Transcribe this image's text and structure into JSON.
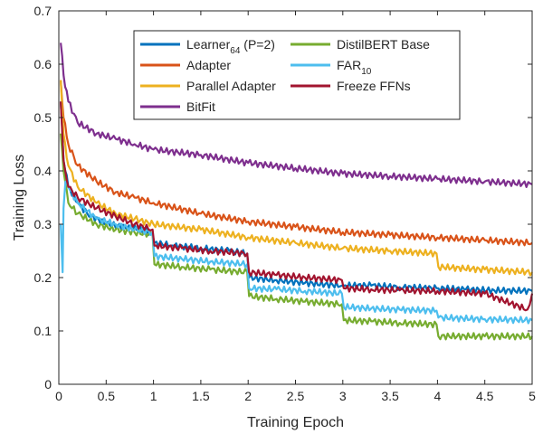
{
  "chart_data": {
    "type": "line",
    "title": "",
    "xlabel": "Training Epoch",
    "ylabel": "Training Loss",
    "xlim": [
      0,
      5
    ],
    "ylim": [
      0,
      0.7
    ],
    "xticks": [
      0,
      0.5,
      1,
      1.5,
      2,
      2.5,
      3,
      3.5,
      4,
      4.5,
      5
    ],
    "xtick_labels": [
      "0",
      "0.5",
      "1",
      "1.5",
      "2",
      "2.5",
      "3",
      "3.5",
      "4",
      "4.5",
      "5"
    ],
    "yticks": [
      0,
      0.1,
      0.2,
      0.3,
      0.4,
      0.5,
      0.6,
      0.7
    ],
    "ytick_labels": [
      "0",
      "0.1",
      "0.2",
      "0.3",
      "0.4",
      "0.5",
      "0.6",
      "0.7"
    ],
    "grid": false,
    "legend_position": "top-center",
    "series": [
      {
        "name": "Learner64 (P=2)",
        "legend_base": "Learner",
        "legend_sub": "64",
        "legend_suffix": " (P=2)",
        "color": "#0072BD",
        "x": [
          0.02,
          0.05,
          0.1,
          0.2,
          0.3,
          0.5,
          0.7,
          0.9,
          0.99,
          1.01,
          1.2,
          1.5,
          1.8,
          1.99,
          2.01,
          2.3,
          2.6,
          2.99,
          3.01,
          3.3,
          3.6,
          3.99,
          4.01,
          4.3,
          4.6,
          5.0
        ],
        "y": [
          0.53,
          0.42,
          0.37,
          0.34,
          0.32,
          0.3,
          0.295,
          0.29,
          0.28,
          0.265,
          0.26,
          0.255,
          0.25,
          0.245,
          0.2,
          0.195,
          0.19,
          0.185,
          0.185,
          0.185,
          0.182,
          0.18,
          0.18,
          0.178,
          0.176,
          0.175
        ]
      },
      {
        "name": "Adapter",
        "color": "#D95319",
        "x": [
          0.02,
          0.05,
          0.1,
          0.2,
          0.4,
          0.6,
          0.8,
          1.0,
          1.5,
          2.0,
          2.5,
          3.0,
          3.5,
          4.0,
          4.5,
          5.0
        ],
        "y": [
          0.57,
          0.5,
          0.45,
          0.41,
          0.38,
          0.36,
          0.35,
          0.34,
          0.32,
          0.305,
          0.295,
          0.285,
          0.28,
          0.275,
          0.27,
          0.265
        ]
      },
      {
        "name": "Parallel Adapter",
        "color": "#EDB120",
        "x": [
          0.02,
          0.05,
          0.1,
          0.2,
          0.4,
          0.6,
          0.8,
          1.0,
          1.5,
          2.0,
          2.5,
          3.0,
          3.5,
          3.99,
          4.01,
          4.5,
          5.0
        ],
        "y": [
          0.57,
          0.47,
          0.41,
          0.37,
          0.34,
          0.32,
          0.31,
          0.3,
          0.29,
          0.275,
          0.265,
          0.255,
          0.25,
          0.245,
          0.22,
          0.215,
          0.21
        ]
      },
      {
        "name": "BitFit",
        "color": "#7E2F8E",
        "x": [
          0.02,
          0.05,
          0.1,
          0.2,
          0.4,
          0.6,
          0.8,
          1.0,
          1.5,
          2.0,
          2.5,
          3.0,
          3.5,
          4.0,
          4.5,
          5.0
        ],
        "y": [
          0.64,
          0.58,
          0.53,
          0.49,
          0.47,
          0.46,
          0.45,
          0.44,
          0.43,
          0.415,
          0.405,
          0.395,
          0.39,
          0.385,
          0.38,
          0.375
        ]
      },
      {
        "name": "DistilBERT Base",
        "color": "#77AC30",
        "x": [
          0.02,
          0.05,
          0.1,
          0.2,
          0.4,
          0.6,
          0.8,
          0.99,
          1.01,
          1.3,
          1.6,
          1.99,
          2.01,
          2.3,
          2.6,
          2.99,
          3.01,
          3.3,
          3.6,
          3.99,
          4.01,
          4.5,
          5.0
        ],
        "y": [
          0.47,
          0.4,
          0.34,
          0.32,
          0.3,
          0.29,
          0.285,
          0.28,
          0.225,
          0.22,
          0.215,
          0.21,
          0.165,
          0.16,
          0.155,
          0.15,
          0.12,
          0.118,
          0.115,
          0.112,
          0.09,
          0.09,
          0.09
        ]
      },
      {
        "name": "FAR10",
        "legend_base": "FAR",
        "legend_sub": "10",
        "legend_suffix": "",
        "color": "#4DBEEE",
        "x": [
          0.02,
          0.04,
          0.05,
          0.07,
          0.1,
          0.2,
          0.4,
          0.6,
          0.8,
          0.99,
          1.01,
          1.3,
          1.6,
          1.99,
          2.01,
          2.3,
          2.6,
          2.99,
          3.01,
          3.3,
          3.6,
          3.99,
          4.01,
          4.5,
          5.0
        ],
        "y": [
          0.3,
          0.21,
          0.33,
          0.38,
          0.37,
          0.34,
          0.31,
          0.3,
          0.29,
          0.285,
          0.24,
          0.235,
          0.23,
          0.225,
          0.18,
          0.178,
          0.175,
          0.17,
          0.145,
          0.142,
          0.14,
          0.138,
          0.125,
          0.122,
          0.12
        ]
      },
      {
        "name": "Freeze FFNs",
        "color": "#A2142F",
        "x": [
          0.02,
          0.05,
          0.1,
          0.2,
          0.4,
          0.6,
          0.8,
          0.99,
          1.01,
          1.3,
          1.6,
          1.99,
          2.01,
          2.3,
          2.6,
          2.99,
          3.01,
          3.3,
          3.6,
          4.0,
          4.5,
          4.95,
          5.0
        ],
        "y": [
          0.53,
          0.42,
          0.37,
          0.35,
          0.33,
          0.315,
          0.3,
          0.29,
          0.26,
          0.255,
          0.25,
          0.245,
          0.21,
          0.205,
          0.2,
          0.195,
          0.18,
          0.178,
          0.176,
          0.175,
          0.17,
          0.14,
          0.17
        ]
      }
    ]
  }
}
